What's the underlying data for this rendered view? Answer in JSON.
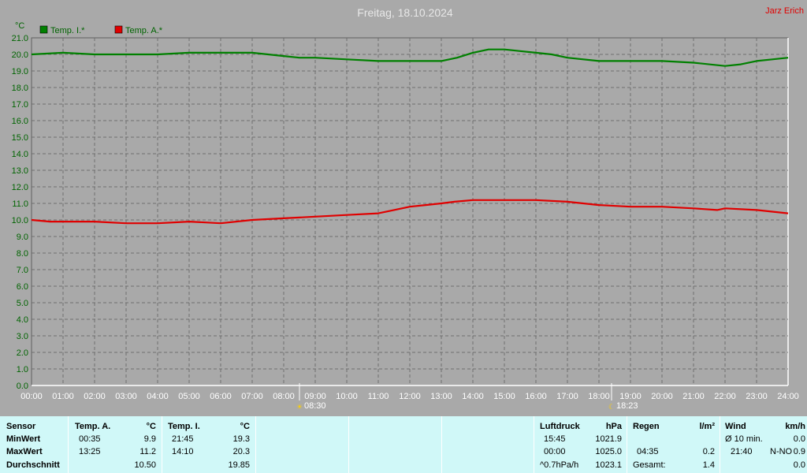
{
  "chart_data": {
    "type": "line",
    "title": "Freitag, 18.10.2024",
    "author": "Jarz Erich",
    "ylabel": "°C",
    "ylim": [
      0,
      21
    ],
    "y_ticks": [
      "0.0",
      "1.0",
      "2.0",
      "3.0",
      "4.0",
      "5.0",
      "6.0",
      "7.0",
      "8.0",
      "9.0",
      "10.0",
      "11.0",
      "12.0",
      "13.0",
      "14.0",
      "15.0",
      "16.0",
      "17.0",
      "18.0",
      "19.0",
      "20.0",
      "21.0"
    ],
    "x_ticks": [
      "00:00",
      "01:00",
      "02:00",
      "03:00",
      "04:00",
      "05:00",
      "06:00",
      "07:00",
      "08:00",
      "09:00",
      "10:00",
      "11:00",
      "12:00",
      "13:00",
      "14:00",
      "15:00",
      "16:00",
      "17:00",
      "18:00",
      "19:00",
      "20:00",
      "21:00",
      "22:00",
      "23:00",
      "24:00"
    ],
    "grid": true,
    "legend_position": "top-left",
    "sunrise": "08:30",
    "sunset": "18:23",
    "series": [
      {
        "name": "Temp. I.*",
        "color": "#008000",
        "x": [
          "00:00",
          "01:00",
          "02:00",
          "03:00",
          "04:00",
          "05:00",
          "06:00",
          "07:00",
          "07:30",
          "08:00",
          "08:30",
          "09:00",
          "10:00",
          "11:00",
          "12:00",
          "13:00",
          "13:30",
          "14:00",
          "14:30",
          "15:00",
          "15:30",
          "16:00",
          "16:30",
          "17:00",
          "18:00",
          "19:00",
          "20:00",
          "21:00",
          "22:00",
          "22:30",
          "23:00",
          "23:30",
          "24:00"
        ],
        "values": [
          20.0,
          20.1,
          20.0,
          20.0,
          20.0,
          20.1,
          20.1,
          20.1,
          20.0,
          19.9,
          19.8,
          19.8,
          19.7,
          19.6,
          19.6,
          19.6,
          19.8,
          20.1,
          20.3,
          20.3,
          20.2,
          20.1,
          20.0,
          19.8,
          19.6,
          19.6,
          19.6,
          19.5,
          19.3,
          19.4,
          19.6,
          19.7,
          19.8
        ]
      },
      {
        "name": "Temp. A.*",
        "color": "#e00000",
        "x": [
          "00:00",
          "00:35",
          "01:00",
          "02:00",
          "03:00",
          "04:00",
          "05:00",
          "06:00",
          "07:00",
          "08:00",
          "09:00",
          "10:00",
          "11:00",
          "11:30",
          "12:00",
          "12:30",
          "13:00",
          "13:25",
          "14:00",
          "15:00",
          "15:30",
          "16:00",
          "17:00",
          "18:00",
          "19:00",
          "20:00",
          "21:00",
          "21:45",
          "22:00",
          "23:00",
          "23:30",
          "24:00"
        ],
        "values": [
          10.0,
          9.9,
          9.9,
          9.9,
          9.8,
          9.8,
          9.9,
          9.8,
          10.0,
          10.1,
          10.2,
          10.3,
          10.4,
          10.6,
          10.8,
          10.9,
          11.0,
          11.1,
          11.2,
          11.2,
          11.2,
          11.2,
          11.1,
          10.9,
          10.8,
          10.8,
          10.7,
          10.6,
          10.7,
          10.6,
          10.5,
          10.4
        ]
      }
    ]
  },
  "panel": {
    "sensor_label": "Sensor",
    "min_label": "MinWert",
    "max_label": "MaxWert",
    "avg_label": "Durchschnitt",
    "temp_a": {
      "header": "Temp. A.",
      "unit": "°C",
      "min_time": "00:35",
      "min_val": "9.9",
      "max_time": "13:25",
      "max_val": "11.2",
      "avg": "10.50"
    },
    "temp_i": {
      "header": "Temp. I.",
      "unit": "°C",
      "min_time": "21:45",
      "min_val": "19.3",
      "max_time": "14:10",
      "max_val": "20.3",
      "avg": "19.85"
    },
    "pressure": {
      "header": "Luftdruck",
      "unit": "hPa",
      "r1_time": "15:45",
      "r1_val": "1021.9",
      "r2_time": "00:00",
      "r2_val": "1025.0",
      "r3_label": "^0.7hPa/h",
      "r3_val": "1023.1"
    },
    "rain": {
      "header": "Regen",
      "unit": "l/m²",
      "r2_time": "04:35",
      "r2_val": "0.2",
      "r3_label": "Gesamt:",
      "r3_val": "1.4"
    },
    "wind": {
      "header": "Wind",
      "unit": "km/h",
      "r1_label": "Ø 10 min.",
      "r1_val": "0.0",
      "r2_time": "21:40",
      "r2_dir": "N-NO",
      "r2_val": "0.9",
      "r3_val": "0.0"
    }
  }
}
